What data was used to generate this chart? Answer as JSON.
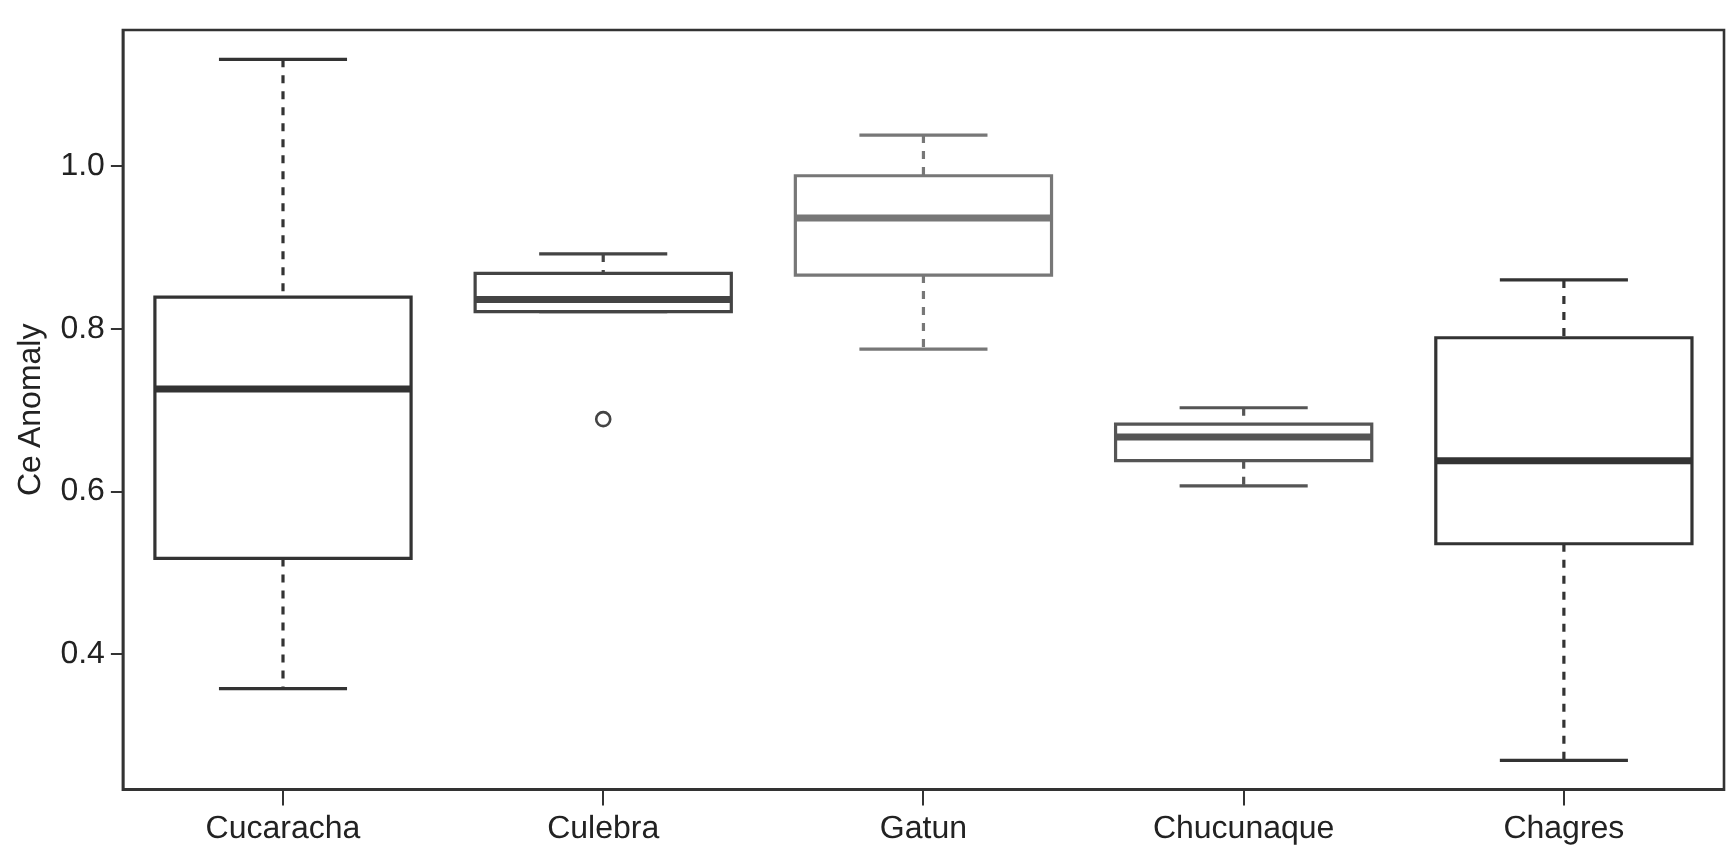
{
  "chart_data": {
    "type": "box",
    "ylabel": "Ce Anomaly",
    "categories": [
      "Cucaracha",
      "Culebra",
      "Gatun",
      "Chucunaque",
      "Chagres"
    ],
    "colors": [
      "#333333",
      "#444444",
      "#777777",
      "#555555",
      "#333333"
    ],
    "boxes": [
      {
        "low": 0.358,
        "q1": 0.518,
        "median": 0.726,
        "q3": 0.839,
        "high": 1.131
      },
      {
        "low": 0.821,
        "q1": 0.821,
        "median": 0.836,
        "q3": 0.868,
        "high": 0.892,
        "outliers": [
          0.689
        ]
      },
      {
        "low": 0.775,
        "q1": 0.866,
        "median": 0.936,
        "q3": 0.988,
        "high": 1.038
      },
      {
        "low": 0.607,
        "q1": 0.638,
        "median": 0.667,
        "q3": 0.683,
        "high": 0.703
      },
      {
        "low": 0.27,
        "q1": 0.536,
        "median": 0.638,
        "q3": 0.789,
        "high": 0.86
      }
    ],
    "ylim": [
      0.234,
      1.167
    ],
    "yticks": [
      0.4,
      0.6,
      0.8,
      {
        "value": 1,
        "label": "1.0"
      }
    ],
    "grid": false,
    "legend": false,
    "line_style": "dashed"
  }
}
